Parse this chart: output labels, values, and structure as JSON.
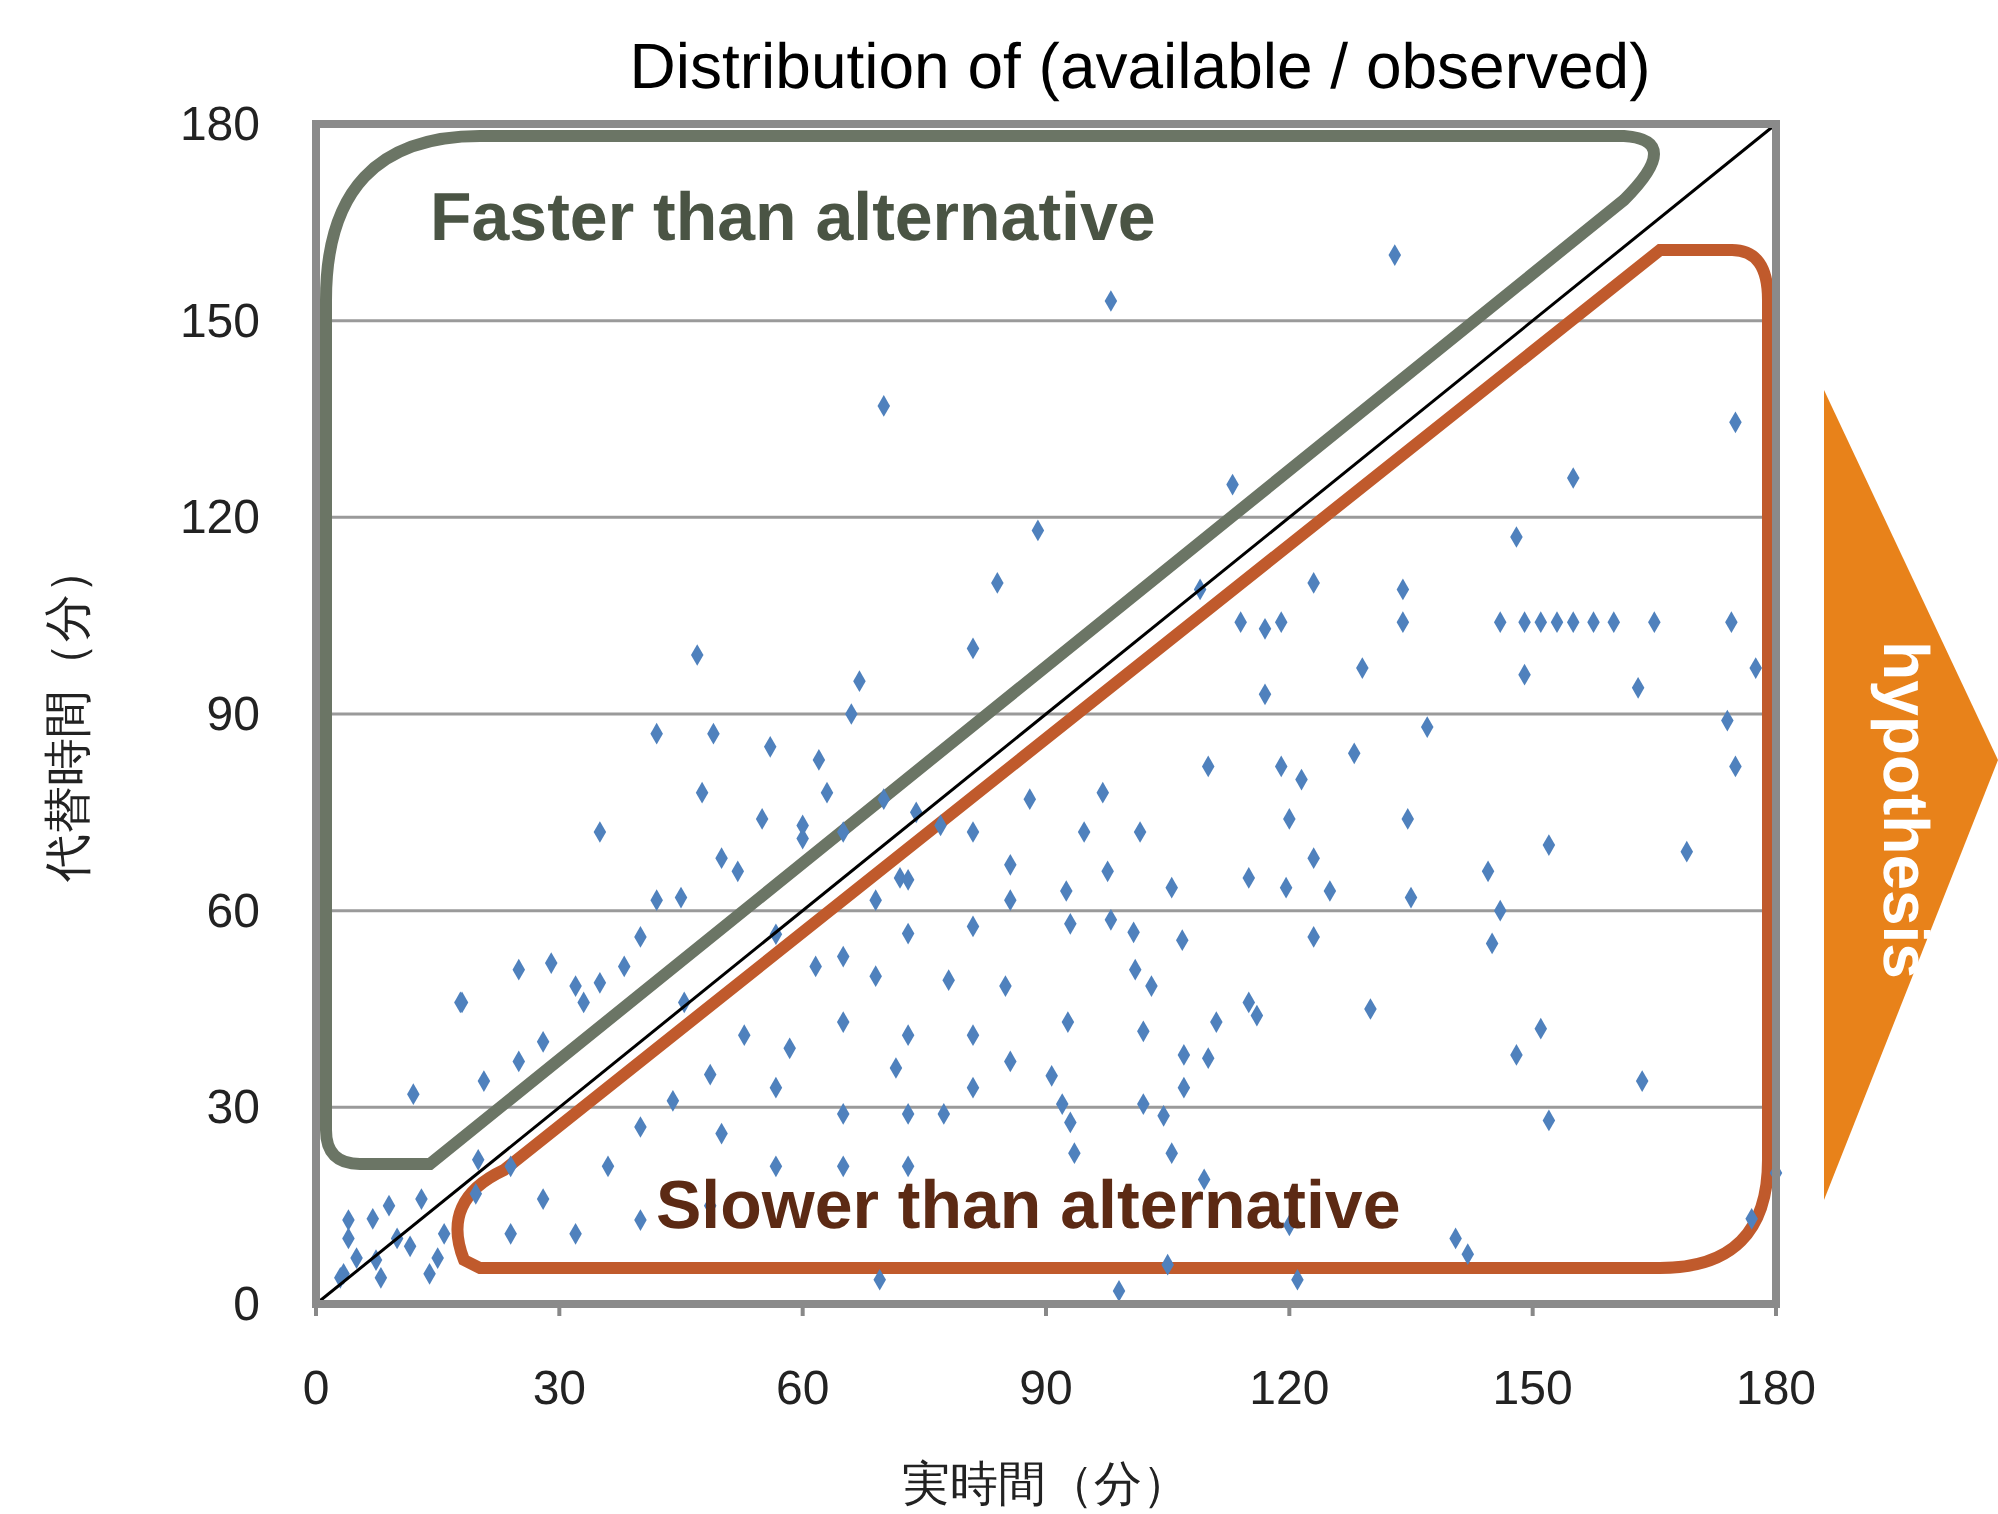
{
  "chart_data": {
    "type": "scatter",
    "title": "Distribution of (available / observed)",
    "xlabel": "実時間（分）",
    "ylabel": "代替時間（分）",
    "xlim": [
      0,
      180
    ],
    "ylim": [
      0,
      180
    ],
    "xticks": [
      0,
      30,
      60,
      90,
      120,
      150,
      180
    ],
    "yticks": [
      0,
      30,
      60,
      90,
      120,
      150,
      180
    ],
    "grid": "y",
    "annotations": [
      "Faster than alternative",
      "Slower than alternative",
      "hypothesis"
    ],
    "series": [
      {
        "marker": "diamond",
        "color": "#4f81bd",
        "x": [
          133,
          98,
          70,
          113,
          89,
          84,
          47,
          81,
          67,
          49,
          35,
          18,
          12,
          55,
          60,
          65,
          70,
          74,
          72,
          45,
          40,
          35,
          33,
          28,
          25,
          50,
          62,
          3,
          5,
          8,
          10,
          4,
          13,
          15,
          20,
          7,
          175,
          155,
          148,
          123,
          146,
          149,
          151,
          153,
          155,
          157.5,
          160,
          165,
          174.5,
          114,
          117,
          119,
          109,
          134,
          134,
          129,
          149,
          177.5,
          117,
          163,
          137,
          174,
          175,
          128,
          110,
          119,
          121.5,
          134.6,
          120,
          152,
          169,
          144.5,
          135,
          146,
          145,
          130,
          151,
          148,
          163.5,
          152,
          180,
          177,
          123,
          125,
          123,
          115,
          119.6,
          115,
          116,
          111,
          110,
          107,
          107,
          102,
          104.5,
          105.5,
          109.5,
          120,
          142,
          140.5,
          105,
          97,
          94.7,
          101.6,
          97.6,
          105.5,
          92.5,
          93,
          98,
          100.8,
          106.8,
          101,
          103,
          92.7,
          102,
          90.7,
          92,
          93,
          93.5,
          56.7,
          65,
          73,
          81,
          61.6,
          69,
          52.8,
          58.4,
          65,
          73,
          81,
          48.6,
          56.7,
          44,
          40,
          50,
          65,
          73,
          81,
          36,
          28,
          24,
          32,
          40,
          48.6,
          56.7,
          65,
          73,
          85.6,
          81,
          85.6,
          88,
          73,
          77,
          69,
          78,
          85,
          71.5,
          85.6,
          77.4,
          45.4,
          47.6,
          56,
          66,
          42,
          63,
          60,
          52,
          42,
          38,
          32,
          17.8,
          20.7,
          29,
          25,
          4,
          7.4,
          11.6,
          3.4,
          9,
          15.8,
          14,
          19.7,
          24,
          121,
          99,
          69.5
        ],
        "values": [
          160,
          153,
          137,
          125,
          118,
          110,
          99,
          100,
          95,
          87,
          72,
          46,
          32,
          74,
          71,
          72,
          77,
          75,
          65,
          62,
          56,
          49,
          46,
          40,
          37,
          68,
          83,
          4,
          7,
          4,
          10,
          10,
          16,
          7,
          22,
          13,
          134.5,
          126,
          117,
          110,
          104,
          104,
          104,
          104,
          104,
          104,
          104,
          104,
          104,
          104,
          103,
          104,
          109,
          109,
          104,
          97,
          96,
          97,
          93,
          94,
          88,
          89,
          82,
          84,
          82,
          82,
          80,
          74,
          74,
          70,
          69,
          66,
          62,
          60,
          55,
          45,
          42,
          38,
          34,
          28,
          20,
          13,
          56,
          63,
          68,
          65,
          63.5,
          46,
          44,
          43,
          37.5,
          38,
          33,
          30.5,
          28.7,
          23,
          19,
          12,
          7.6,
          10,
          6,
          78,
          72,
          72,
          66,
          63.5,
          63,
          58,
          58.6,
          56.7,
          55.5,
          51,
          48.5,
          43,
          41.6,
          34.8,
          30.5,
          27.7,
          23,
          56.4,
          53,
          56.5,
          57.6,
          51.5,
          50,
          41,
          39,
          43,
          41,
          41,
          35,
          33,
          31,
          27,
          26,
          29,
          29,
          33,
          21,
          16,
          10.7,
          10.7,
          12.8,
          15,
          21,
          21,
          21,
          61.6,
          72,
          67,
          77,
          64.7,
          73,
          61.6,
          49.4,
          48.5,
          36,
          37,
          29,
          46,
          78,
          85,
          90,
          87,
          78,
          73,
          66,
          61.6,
          51.5,
          48.5,
          46,
          34,
          52,
          51,
          12.8,
          6.7,
          8.8,
          4.6,
          15,
          10.7,
          4.6,
          16.8,
          21,
          3.7,
          2,
          3.7
        ]
      },
      {
        "type": "line",
        "marker": "none",
        "color": "#000000",
        "line_style": "solid",
        "x": [
          0,
          180
        ],
        "values": [
          0,
          180
        ]
      }
    ]
  }
}
